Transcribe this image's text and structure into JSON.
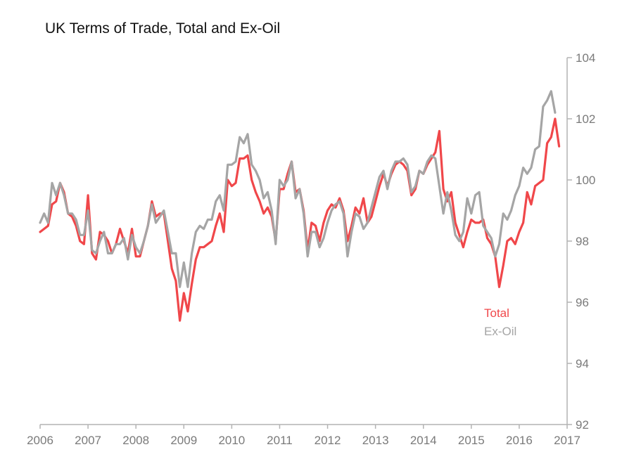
{
  "chart_data": {
    "type": "line",
    "title": "UK Terms of Trade, Total and Ex-Oil",
    "xlabel": "",
    "ylabel": "",
    "xlim": [
      2006,
      2017
    ],
    "ylim": [
      92,
      104
    ],
    "x_ticks": [
      "2006",
      "2007",
      "2008",
      "2009",
      "2010",
      "2011",
      "2012",
      "2013",
      "2014",
      "2015",
      "2016",
      "2017"
    ],
    "y_ticks": [
      "92",
      "94",
      "96",
      "98",
      "100",
      "102",
      "104"
    ],
    "y_axis_side": "right",
    "grid": false,
    "legend_placement": "bottom-right",
    "x_start": 2006.0,
    "x_step": 0.08333,
    "series": [
      {
        "name": "Total",
        "color": "#f0474a",
        "values": [
          98.3,
          98.4,
          98.5,
          99.2,
          99.3,
          99.9,
          99.6,
          98.9,
          98.8,
          98.5,
          98.0,
          97.9,
          99.5,
          97.6,
          97.4,
          98.3,
          98.2,
          98.0,
          97.6,
          97.9,
          98.4,
          98.0,
          97.6,
          98.4,
          97.5,
          97.5,
          98.0,
          98.5,
          99.3,
          98.8,
          98.9,
          98.9,
          98.0,
          97.1,
          96.7,
          95.4,
          96.3,
          95.7,
          96.6,
          97.4,
          97.8,
          97.8,
          97.9,
          98.0,
          98.5,
          98.9,
          98.3,
          100.0,
          99.8,
          99.9,
          100.7,
          100.7,
          100.8,
          100.0,
          99.6,
          99.3,
          98.9,
          99.1,
          98.8,
          98.0,
          99.7,
          99.7,
          100.2,
          100.6,
          99.6,
          99.7,
          99.0,
          97.7,
          98.6,
          98.5,
          98.0,
          98.6,
          99.0,
          99.2,
          99.1,
          99.4,
          99.0,
          98.0,
          98.5,
          99.1,
          98.9,
          99.4,
          98.6,
          98.8,
          99.3,
          99.8,
          100.2,
          99.8,
          100.2,
          100.5,
          100.6,
          100.5,
          100.3,
          99.5,
          99.7,
          100.3,
          100.2,
          100.5,
          100.7,
          100.9,
          101.6,
          99.7,
          99.3,
          99.6,
          98.6,
          98.2,
          97.8,
          98.3,
          98.7,
          98.6,
          98.6,
          98.7,
          98.1,
          97.9,
          97.5,
          96.5,
          97.2,
          98.0,
          98.1,
          97.9,
          98.3,
          98.6,
          99.6,
          99.2,
          99.8,
          99.9,
          100.0,
          101.2,
          101.4,
          102.0,
          101.1
        ]
      },
      {
        "name": "Ex-Oil",
        "color": "#a5a5a5",
        "values": [
          98.6,
          98.9,
          98.6,
          99.9,
          99.5,
          99.9,
          99.5,
          98.9,
          98.9,
          98.7,
          98.2,
          98.2,
          99.0,
          97.7,
          97.6,
          98.0,
          98.3,
          97.6,
          97.6,
          97.9,
          97.9,
          98.1,
          97.4,
          98.2,
          97.8,
          97.6,
          98.0,
          98.5,
          99.2,
          98.6,
          98.8,
          99.0,
          98.3,
          97.6,
          97.6,
          96.5,
          97.3,
          96.5,
          97.6,
          98.3,
          98.5,
          98.4,
          98.7,
          98.7,
          99.3,
          99.5,
          99.0,
          100.5,
          100.5,
          100.6,
          101.4,
          101.2,
          101.5,
          100.5,
          100.3,
          100.0,
          99.4,
          99.6,
          99.0,
          97.9,
          100.0,
          99.8,
          100.0,
          100.6,
          99.4,
          99.7,
          98.9,
          97.5,
          98.3,
          98.3,
          97.8,
          98.1,
          98.6,
          99.0,
          99.2,
          99.3,
          98.9,
          97.5,
          98.3,
          98.9,
          98.8,
          98.4,
          98.6,
          99.1,
          99.6,
          100.1,
          100.3,
          99.7,
          100.3,
          100.6,
          100.6,
          100.7,
          100.5,
          99.6,
          99.8,
          100.3,
          100.2,
          100.6,
          100.8,
          100.7,
          99.8,
          98.9,
          99.6,
          99.0,
          98.2,
          98.0,
          98.3,
          99.4,
          98.9,
          99.5,
          99.6,
          98.5,
          98.3,
          98.1,
          97.5,
          97.9,
          98.9,
          98.7,
          99.0,
          99.5,
          99.8,
          100.4,
          100.2,
          100.4,
          101.0,
          101.1,
          102.4,
          102.6,
          102.9,
          102.2
        ]
      }
    ]
  }
}
